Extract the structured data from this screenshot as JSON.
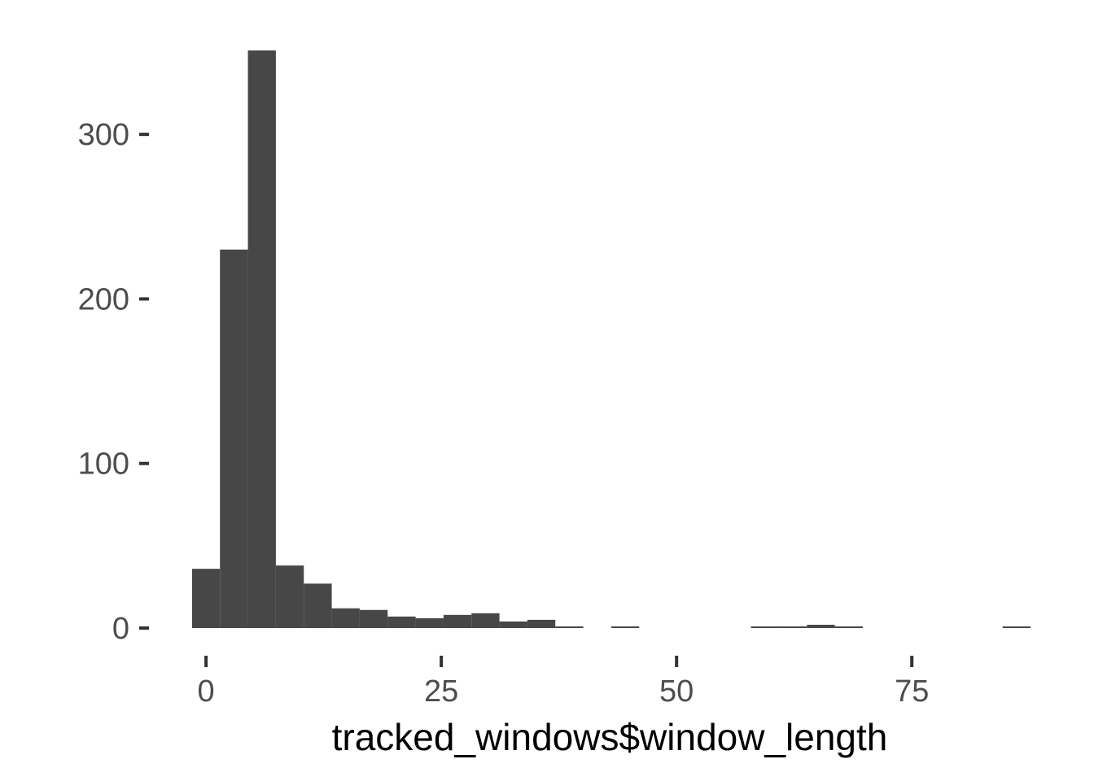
{
  "chart_data": {
    "type": "bar",
    "xlabel": "tracked_windows$window_length",
    "ylabel": "",
    "title": "",
    "bin_width": 2.97,
    "bins": [
      {
        "start": -1.48,
        "end": 1.48,
        "count": 36
      },
      {
        "start": 1.48,
        "end": 4.45,
        "count": 230
      },
      {
        "start": 4.45,
        "end": 7.42,
        "count": 351
      },
      {
        "start": 7.42,
        "end": 10.39,
        "count": 38
      },
      {
        "start": 10.39,
        "end": 13.36,
        "count": 27
      },
      {
        "start": 13.36,
        "end": 16.33,
        "count": 12
      },
      {
        "start": 16.33,
        "end": 19.3,
        "count": 11
      },
      {
        "start": 19.3,
        "end": 22.27,
        "count": 7
      },
      {
        "start": 22.27,
        "end": 25.24,
        "count": 6
      },
      {
        "start": 25.24,
        "end": 28.21,
        "count": 8
      },
      {
        "start": 28.21,
        "end": 31.18,
        "count": 9
      },
      {
        "start": 31.18,
        "end": 34.15,
        "count": 4
      },
      {
        "start": 34.15,
        "end": 37.12,
        "count": 5
      },
      {
        "start": 37.12,
        "end": 40.09,
        "count": 1
      },
      {
        "start": 40.09,
        "end": 43.06,
        "count": 0
      },
      {
        "start": 43.06,
        "end": 46.03,
        "count": 1
      },
      {
        "start": 46.03,
        "end": 49.0,
        "count": 0
      },
      {
        "start": 49.0,
        "end": 51.97,
        "count": 0
      },
      {
        "start": 51.97,
        "end": 54.94,
        "count": 0
      },
      {
        "start": 54.94,
        "end": 57.91,
        "count": 0
      },
      {
        "start": 57.91,
        "end": 60.88,
        "count": 1
      },
      {
        "start": 60.88,
        "end": 63.85,
        "count": 1
      },
      {
        "start": 63.85,
        "end": 66.82,
        "count": 2
      },
      {
        "start": 66.82,
        "end": 69.79,
        "count": 1
      },
      {
        "start": 69.79,
        "end": 72.76,
        "count": 0
      },
      {
        "start": 72.76,
        "end": 75.73,
        "count": 0
      },
      {
        "start": 75.73,
        "end": 78.7,
        "count": 0
      },
      {
        "start": 78.7,
        "end": 81.67,
        "count": 0
      },
      {
        "start": 81.67,
        "end": 84.64,
        "count": 0
      },
      {
        "start": 84.64,
        "end": 87.61,
        "count": 1
      }
    ],
    "x_ticks": [
      0,
      25,
      50,
      75
    ],
    "x_tick_labels": [
      "0",
      "25",
      "50",
      "75"
    ],
    "y_ticks": [
      0,
      100,
      200,
      300
    ],
    "y_tick_labels": [
      "0",
      "100",
      "200",
      "300"
    ],
    "xlim": [
      -1.48,
      87.61
    ],
    "ylim": [
      0,
      351
    ],
    "grid": false,
    "legend": "none",
    "bar_color": "#474747",
    "tick_color": "#333333",
    "tick_label_color": "#4d4d4d",
    "axis_title_color": "#000000",
    "background": "#ffffff"
  }
}
